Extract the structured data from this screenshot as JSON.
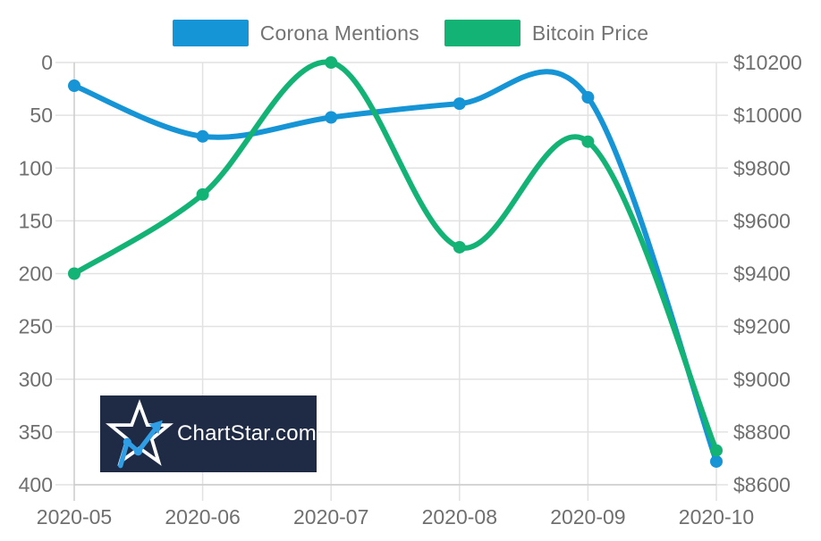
{
  "legend": {
    "items": [
      {
        "label": "Corona Mentions",
        "color": "#1594d6"
      },
      {
        "label": "Bitcoin Price",
        "color": "#12b375"
      }
    ]
  },
  "watermark": {
    "text": "ChartStar.com",
    "background": "#1f2a44",
    "star_color": "#ffffff",
    "trend_color": "#2f9ee5"
  },
  "colors": {
    "grid": "#e2e2e2",
    "axis_line": "#cccccc",
    "axis_text": "#6f6f6f",
    "background": "#ffffff"
  },
  "chart_data": {
    "type": "line",
    "x": [
      "2020-05",
      "2020-06",
      "2020-07",
      "2020-08",
      "2020-09",
      "2020-10"
    ],
    "series": [
      {
        "name": "Corona Mentions",
        "color": "#1594d6",
        "axis": "left",
        "values": [
          22,
          70,
          52,
          39,
          33,
          378
        ]
      },
      {
        "name": "Bitcoin Price",
        "color": "#12b375",
        "axis": "right",
        "values": [
          9400,
          9700,
          10200,
          9500,
          9900,
          8730
        ]
      }
    ],
    "left_axis": {
      "min": 0,
      "max": 400,
      "direction": "top-to-bottom",
      "ticks": [
        0,
        50,
        100,
        150,
        200,
        250,
        300,
        350,
        400
      ],
      "tick_labels": [
        "0",
        "50",
        "100",
        "150",
        "200",
        "250",
        "300",
        "350",
        "400"
      ]
    },
    "right_axis": {
      "min": 8600,
      "max": 10200,
      "direction": "bottom-to-top",
      "prefix": "$",
      "ticks": [
        10200,
        10000,
        9800,
        9600,
        9400,
        9200,
        9000,
        8800,
        8600
      ],
      "tick_labels": [
        "$10200",
        "$10000",
        "$9800",
        "$9600",
        "$9400",
        "$9200",
        "$9000",
        "$8800",
        "$8600"
      ]
    },
    "legend_position": "top",
    "grid": true,
    "line_width": 6,
    "marker_radius": 7
  }
}
